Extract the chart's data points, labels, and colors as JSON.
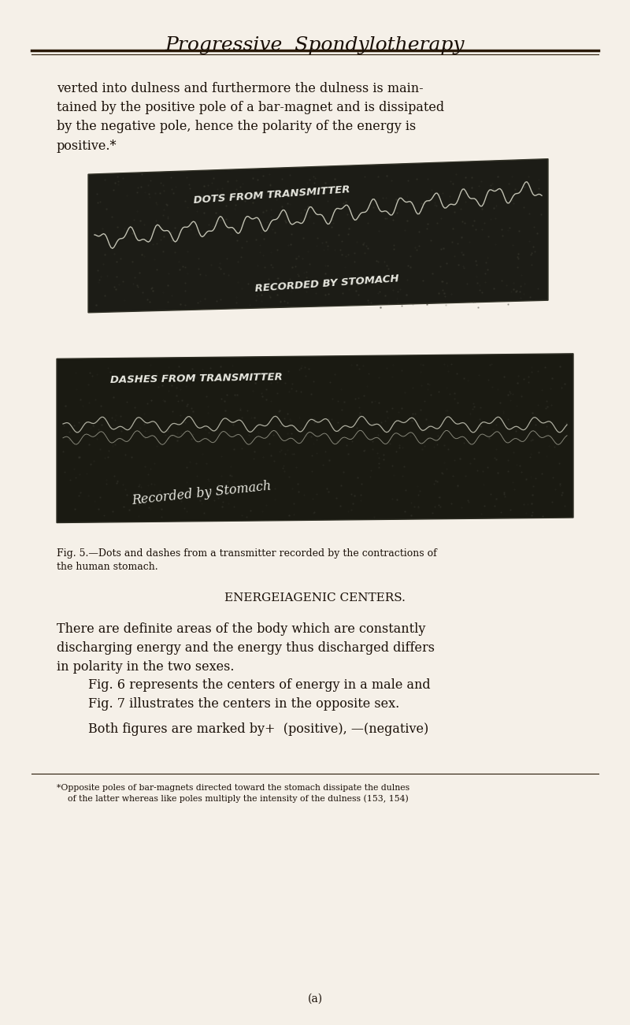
{
  "background_color": "#f5f0e8",
  "page_width": 8.0,
  "page_height": 13.01,
  "header_title": "Progressive  Spondylotherapy",
  "header_font_size": 18,
  "body_text_1": "verted into dulness and furthermore the dulness is main-\ntained by the positive pole of a bar-magnet and is dissipated\nby the negative pole, hence the polarity of the energy is\npositive.*",
  "img1_label_top": "DOTS FROM TRANSMITTER",
  "img1_label_bottom": "RECORDED BY STOMACH",
  "img2_label_top": "DASHES FROM TRANSMITTER",
  "img2_label_bottom": "Recorded by Stomach",
  "fig_caption": "Fig. 5.—Dots and dashes from a transmitter recorded by the contractions of\nthe human stomach.",
  "section_header": "ENERGEIAGENIC CENTERS.",
  "body_text_2": "There are definite areas of the body which are constantly\ndischarging energy and the energy thus discharged differs\nin ⁠polarity⁠ in the two sexes.",
  "body_text_3": "Fig. 6 represents the centers of energy in a male and\nFig. 7 illustrates the centers in the opposite sex.",
  "body_text_4": "Both figures are marked by+  (positive), —(negative)",
  "footnote_line": "*Opposite poles of bar-magnets directed toward the stomach dissipate the dulnes\n    of the latter whereas like poles multiply the intensity of the dulness (153, 154)",
  "page_num": "(a)",
  "text_color": "#1a1008",
  "dark_bg_color": "#1a1a14",
  "white_text_color": "#e8e8e0"
}
